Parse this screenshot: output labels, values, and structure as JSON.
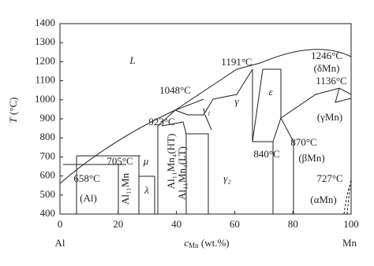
{
  "chart_data": {
    "type": "phase",
    "x_label": [
      "c",
      "Mn",
      " (wt.%)"
    ],
    "y_label": [
      "T",
      " (°C)"
    ],
    "xlim": [
      0,
      100
    ],
    "xticks": [
      0,
      20,
      40,
      60,
      80,
      100
    ],
    "ylim": [
      400,
      1400
    ],
    "yticks": [
      400,
      500,
      600,
      700,
      800,
      900,
      1000,
      1100,
      1200,
      1300,
      1400
    ],
    "end_labels": [
      "Al",
      "Mn"
    ],
    "annotations": [
      "L",
      "1191°C",
      "1246°C",
      "(δMn)",
      "1136°C",
      "1048°C",
      "γ",
      "ε",
      "γ₁",
      "923°C",
      "(γMn)",
      "705°C",
      "μ",
      "870°C",
      "840°C",
      "(βMn)",
      "658°C",
      "727°C",
      "λ",
      "γ₂",
      "(Al)",
      "(αMn)",
      "Al₁₁Mn",
      "Al₁₁Mn₄(HT)",
      "Al₁₁Mn₄(LT)"
    ]
  }
}
